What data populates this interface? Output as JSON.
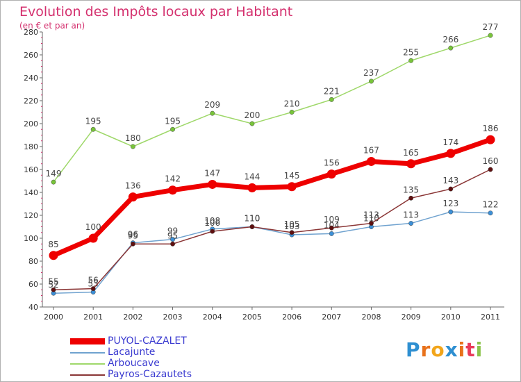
{
  "title": "Evolution des Impôts locaux par Habitant",
  "subtitle": "(en € et par an)",
  "logo": {
    "letters": [
      "P",
      "r",
      "o",
      "x",
      "i",
      "t",
      "i"
    ],
    "colors": [
      "#2e8fd1",
      "#e8721c",
      "#f2a51a",
      "#2e8fd1",
      "#e8721c",
      "#e83a5a",
      "#8bc34a"
    ]
  },
  "chart_data": {
    "type": "line",
    "title": "Evolution des Impôts locaux par Habitant",
    "ylabel": "(en € et par an)",
    "categories": [
      "2000",
      "2001",
      "2002",
      "2003",
      "2004",
      "2005",
      "2006",
      "2007",
      "2008",
      "2009",
      "2010",
      "2011"
    ],
    "ylim": [
      40,
      280
    ],
    "yticks": [
      40,
      60,
      80,
      100,
      120,
      140,
      160,
      180,
      200,
      220,
      240,
      260,
      280
    ],
    "grid": false,
    "legend_position": "bottom-left",
    "series": [
      {
        "name": "Lacajunte",
        "color": "#6fa2cf",
        "point_color": "#3c8fd6",
        "values": [
          52,
          53,
          96,
          99,
          108,
          110,
          103,
          104,
          110,
          113,
          123,
          122
        ]
      },
      {
        "name": "Arboucave",
        "color": "#9fd86a",
        "point_color": "#78c43a",
        "values": [
          149,
          195,
          180,
          195,
          209,
          200,
          210,
          221,
          237,
          255,
          266,
          277
        ]
      },
      {
        "name": "Payros-Cazautets",
        "color": "#8a3535",
        "point_color": "#5e0f0f",
        "values": [
          55,
          56,
          95,
          95,
          106,
          110,
          105,
          109,
          113,
          135,
          143,
          160
        ]
      },
      {
        "name": "PUYOL-CAZALET",
        "color": "#ee0000",
        "point_color": "#ee0000",
        "values": [
          85,
          100,
          136,
          142,
          147,
          144,
          145,
          156,
          167,
          165,
          174,
          186
        ]
      }
    ]
  },
  "legend": [
    {
      "label": "PUYOL-CAZALET",
      "color": "#ee0000"
    },
    {
      "label": "Lacajunte",
      "color": "#6fa2cf"
    },
    {
      "label": "Arboucave",
      "color": "#9fd86a"
    },
    {
      "label": "Payros-Cazautets",
      "color": "#8a3535"
    }
  ]
}
